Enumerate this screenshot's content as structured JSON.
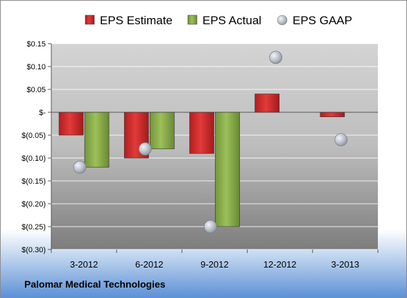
{
  "footer": {
    "company": "Palomar Medical Technologies"
  },
  "colors": {
    "estimate": "#d42a2a",
    "actual": "#8db04a",
    "gaap": "#b9bec8"
  },
  "chart_data": {
    "type": "bar",
    "categories": [
      "3-2012",
      "6-2012",
      "9-2012",
      "12-2012",
      "3-2013"
    ],
    "series": [
      {
        "name": "EPS Estimate",
        "kind": "bar",
        "values": [
          -0.05,
          -0.1,
          -0.09,
          0.04,
          -0.01
        ]
      },
      {
        "name": "EPS Actual",
        "kind": "bar",
        "values": [
          -0.12,
          -0.08,
          -0.25,
          null,
          null
        ]
      },
      {
        "name": "EPS GAAP",
        "kind": "scatter",
        "values": [
          -0.12,
          -0.08,
          -0.25,
          0.12,
          -0.06
        ]
      }
    ],
    "ylim": [
      -0.3,
      0.15
    ],
    "yticks": [
      0.15,
      0.1,
      0.05,
      0,
      -0.05,
      -0.1,
      -0.15,
      -0.2,
      -0.25,
      -0.3
    ],
    "ytick_labels": [
      "$0.15",
      "$0.10",
      "$0.05",
      "$-",
      "$(0.05)",
      "$(0.10)",
      "$(0.15)",
      "$(0.20)",
      "$(0.25)",
      "$(0.30)"
    ],
    "legend_position": "top",
    "grid": true
  }
}
